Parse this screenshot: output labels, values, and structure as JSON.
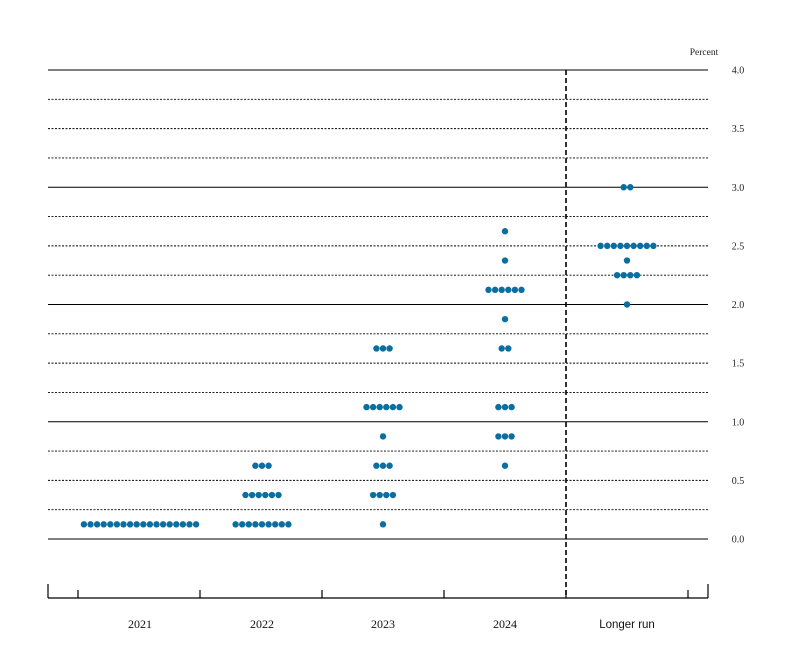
{
  "chart_data": {
    "type": "scatter",
    "subtype": "dot-plot",
    "ylabel": "Percent",
    "ylim": [
      -0.375,
      4.0
    ],
    "yticks": [
      "4.0",
      "3.5",
      "3.0",
      "2.5",
      "2.0",
      "1.5",
      "1.0",
      "0.5",
      "0.0"
    ],
    "categories": [
      "2021",
      "2022",
      "2023",
      "2024",
      "Longer run"
    ],
    "grid": true,
    "dot_color": "#0a6fa0",
    "groups": [
      {
        "category": "2021",
        "points": [
          {
            "y": 0.125,
            "count": 18
          }
        ]
      },
      {
        "category": "2022",
        "points": [
          {
            "y": 0.625,
            "count": 3
          },
          {
            "y": 0.375,
            "count": 6
          },
          {
            "y": 0.125,
            "count": 9
          }
        ]
      },
      {
        "category": "2023",
        "points": [
          {
            "y": 1.625,
            "count": 3
          },
          {
            "y": 1.125,
            "count": 6
          },
          {
            "y": 0.875,
            "count": 1
          },
          {
            "y": 0.625,
            "count": 3
          },
          {
            "y": 0.375,
            "count": 4
          },
          {
            "y": 0.125,
            "count": 1
          }
        ]
      },
      {
        "category": "2024",
        "points": [
          {
            "y": 2.625,
            "count": 1
          },
          {
            "y": 2.375,
            "count": 1
          },
          {
            "y": 2.125,
            "count": 6
          },
          {
            "y": 1.875,
            "count": 1
          },
          {
            "y": 1.625,
            "count": 2
          },
          {
            "y": 1.125,
            "count": 3
          },
          {
            "y": 0.875,
            "count": 3
          },
          {
            "y": 0.625,
            "count": 1
          }
        ]
      },
      {
        "category": "Longer run",
        "points": [
          {
            "y": 3.0,
            "count": 2
          },
          {
            "y": 2.5,
            "count": 9
          },
          {
            "y": 2.375,
            "count": 1
          },
          {
            "y": 2.25,
            "count": 4
          },
          {
            "y": 2.0,
            "count": 1
          }
        ]
      }
    ]
  }
}
